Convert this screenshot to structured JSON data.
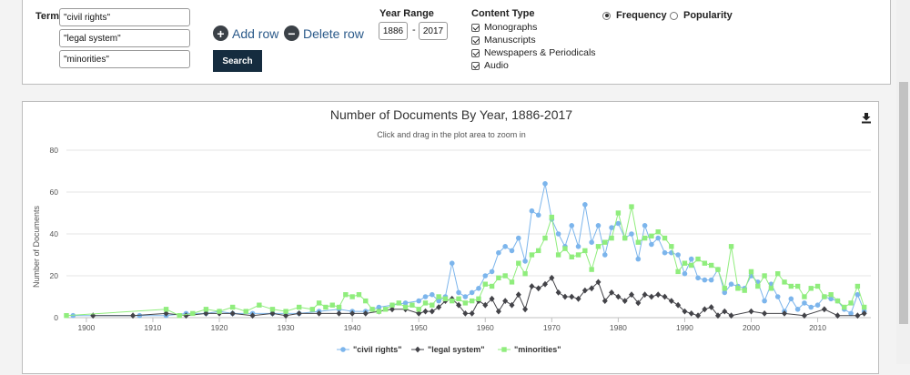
{
  "search": {
    "term_label": "Term",
    "terms": [
      "\"civil rights\"",
      "\"legal system\"",
      "\"minorities\""
    ],
    "add_row": "Add row",
    "delete_row": "Delete row",
    "search_button": "Search",
    "year_range_label": "Year Range",
    "year_from": "1886",
    "year_to": "2017",
    "content_type_label": "Content Type",
    "content_types": [
      "Monographs",
      "Manuscripts",
      "Newspapers & Periodicals",
      "Audio"
    ],
    "metric_options": [
      "Frequency",
      "Popularity"
    ],
    "metric_selected": "Frequency"
  },
  "chart_data": {
    "type": "line",
    "title": "Number of Documents By Year, 1886-2017",
    "subtitle": "Click and drag in the plot area to zoom in",
    "xlabel": "",
    "ylabel": "Number of Documents",
    "xlim": [
      1897,
      2018
    ],
    "ylim": [
      0,
      80
    ],
    "xticks": [
      1900,
      1910,
      1920,
      1930,
      1940,
      1950,
      1960,
      1970,
      1980,
      1990,
      2000,
      2010
    ],
    "yticks": [
      0,
      20,
      40,
      60,
      80
    ],
    "grid": "horizontal",
    "legend": "bottom-center",
    "series": [
      {
        "name": "\"civil rights\"",
        "color": "#7cb5ec",
        "marker": "circle",
        "x": [
          1898,
          1908,
          1912,
          1915,
          1918,
          1920,
          1922,
          1925,
          1928,
          1930,
          1932,
          1935,
          1938,
          1940,
          1942,
          1944,
          1946,
          1948,
          1950,
          1951,
          1952,
          1953,
          1954,
          1955,
          1956,
          1957,
          1958,
          1959,
          1960,
          1961,
          1962,
          1963,
          1964,
          1965,
          1966,
          1967,
          1968,
          1969,
          1970,
          1971,
          1972,
          1973,
          1974,
          1975,
          1976,
          1977,
          1978,
          1979,
          1980,
          1981,
          1982,
          1983,
          1984,
          1985,
          1986,
          1987,
          1988,
          1989,
          1990,
          1991,
          1992,
          1993,
          1994,
          1995,
          1996,
          1997,
          1998,
          1999,
          2000,
          2001,
          2002,
          2003,
          2004,
          2005,
          2006,
          2007,
          2008,
          2009,
          2010,
          2011,
          2012,
          2013,
          2014,
          2015,
          2016,
          2017
        ],
        "values": [
          1,
          1,
          1,
          2,
          2,
          3,
          2,
          2,
          2,
          2,
          2,
          3,
          4,
          3,
          3,
          5,
          6,
          7,
          8,
          10,
          11,
          8,
          10,
          26,
          12,
          10,
          12,
          14,
          20,
          22,
          31,
          34,
          32,
          38,
          27,
          51,
          49,
          64,
          47,
          40,
          34,
          44,
          34,
          54,
          36,
          44,
          30,
          43,
          45,
          38,
          40,
          28,
          44,
          35,
          38,
          31,
          31,
          30,
          21,
          28,
          19,
          18,
          18,
          23,
          12,
          16,
          15,
          14,
          20,
          17,
          8,
          16,
          10,
          3,
          9,
          4,
          7,
          5,
          6,
          10,
          9,
          8,
          4,
          2,
          11,
          3
        ]
      },
      {
        "name": "\"legal system\"",
        "color": "#434348",
        "marker": "diamond",
        "x": [
          1901,
          1907,
          1912,
          1915,
          1918,
          1920,
          1922,
          1925,
          1928,
          1930,
          1932,
          1935,
          1938,
          1940,
          1942,
          1944,
          1946,
          1948,
          1950,
          1951,
          1952,
          1953,
          1954,
          1955,
          1956,
          1957,
          1958,
          1959,
          1960,
          1961,
          1962,
          1963,
          1964,
          1965,
          1966,
          1967,
          1968,
          1969,
          1970,
          1971,
          1972,
          1973,
          1974,
          1975,
          1976,
          1977,
          1978,
          1979,
          1980,
          1981,
          1982,
          1983,
          1984,
          1985,
          1986,
          1987,
          1988,
          1989,
          1990,
          1991,
          1992,
          1993,
          1994,
          1995,
          1996,
          1997,
          2000,
          2002,
          2005,
          2008,
          2011,
          2013,
          2016,
          2017
        ],
        "values": [
          1,
          1,
          2,
          1,
          2,
          2,
          2,
          1,
          2,
          1,
          2,
          2,
          2,
          2,
          2,
          3,
          4,
          4,
          2,
          3,
          3,
          5,
          8,
          9,
          6,
          2,
          2,
          8,
          6,
          9,
          3,
          8,
          6,
          11,
          4,
          15,
          14,
          16,
          19,
          12,
          10,
          10,
          9,
          13,
          14,
          17,
          8,
          12,
          10,
          8,
          11,
          7,
          11,
          10,
          11,
          10,
          8,
          6,
          3,
          2,
          1,
          4,
          5,
          1,
          3,
          1,
          3,
          2,
          2,
          1,
          4,
          1,
          1,
          2
        ]
      },
      {
        "name": "\"minorities\"",
        "color": "#90ed7d",
        "marker": "square",
        "x": [
          1897,
          1912,
          1914,
          1916,
          1918,
          1920,
          1922,
          1924,
          1926,
          1928,
          1930,
          1932,
          1934,
          1935,
          1936,
          1937,
          1938,
          1939,
          1940,
          1941,
          1942,
          1943,
          1944,
          1945,
          1946,
          1947,
          1948,
          1949,
          1950,
          1951,
          1952,
          1953,
          1954,
          1955,
          1956,
          1957,
          1958,
          1959,
          1960,
          1961,
          1962,
          1963,
          1964,
          1965,
          1966,
          1967,
          1968,
          1969,
          1970,
          1971,
          1972,
          1973,
          1974,
          1975,
          1976,
          1977,
          1978,
          1979,
          1980,
          1981,
          1982,
          1983,
          1984,
          1985,
          1986,
          1987,
          1988,
          1989,
          1990,
          1991,
          1992,
          1993,
          1994,
          1995,
          1996,
          1997,
          1998,
          1999,
          2000,
          2001,
          2002,
          2003,
          2004,
          2005,
          2006,
          2007,
          2008,
          2009,
          2010,
          2011,
          2012,
          2013,
          2014,
          2015,
          2016,
          2017
        ],
        "values": [
          1,
          4,
          1,
          2,
          4,
          3,
          5,
          3,
          6,
          4,
          3,
          5,
          4,
          7,
          5,
          6,
          5,
          11,
          10,
          11,
          8,
          4,
          3,
          4,
          6,
          7,
          5,
          6,
          4,
          7,
          6,
          10,
          9,
          8,
          9,
          7,
          8,
          9,
          16,
          15,
          19,
          20,
          17,
          26,
          21,
          30,
          32,
          38,
          48,
          30,
          33,
          29,
          30,
          32,
          23,
          34,
          36,
          38,
          50,
          38,
          53,
          36,
          38,
          39,
          41,
          38,
          34,
          22,
          26,
          25,
          28,
          26,
          25,
          23,
          14,
          34,
          14,
          13,
          22,
          15,
          20,
          14,
          21,
          17,
          15,
          15,
          10,
          14,
          15,
          10,
          11,
          8,
          5,
          7,
          15,
          5
        ]
      }
    ]
  }
}
